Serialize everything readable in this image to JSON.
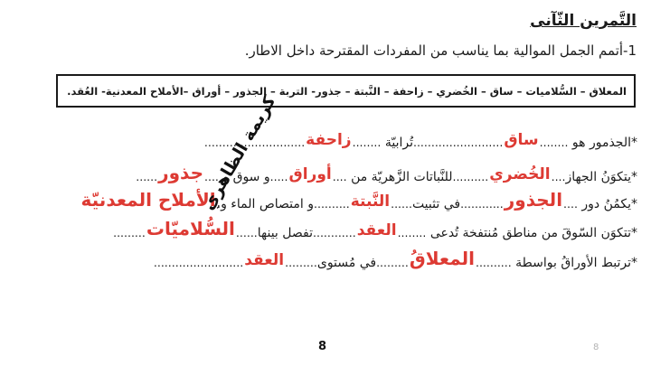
{
  "page": {
    "title": "التَّمرين الثّآنى",
    "instruction": "1-أتمم الجمل الموالية بما يناسب من المفردات المقترحة داخل الاطار.",
    "vocab_box": "المعلاق – السُّلاميات – ساق – الخُضري – زاحفة – النَّبتة – جذور- التربة – الجذور – أوراق –الأملاح المعدنية- العُقد.",
    "watermark": "كريمة الظاهري",
    "page_number": "8",
    "page_number_small": "8"
  },
  "colors": {
    "answer_red": "#dd3a33",
    "ink": "#1b1b1b"
  },
  "lines": [
    {
      "segments": [
        {
          "type": "print",
          "text": "*الجذمور هو "
        },
        {
          "type": "dots",
          "text": "........"
        },
        {
          "type": "answer",
          "text": "ساق"
        },
        {
          "type": "dots",
          "text": "........................."
        },
        {
          "type": "print",
          "text": "تُرابيّة "
        },
        {
          "type": "dots",
          "text": "........"
        },
        {
          "type": "answer",
          "text": "زاحفة"
        },
        {
          "type": "dots",
          "text": "............................"
        }
      ]
    },
    {
      "segments": [
        {
          "type": "print",
          "text": "*يتكوَنُ الجهاز"
        },
        {
          "type": "dots",
          "text": "...."
        },
        {
          "type": "answer",
          "text": "الخُضري"
        },
        {
          "type": "dots",
          "text": ".........."
        },
        {
          "type": "print",
          "text": "للنَّباتات الزَّهريّة من "
        },
        {
          "type": "dots",
          "text": "...."
        },
        {
          "type": "answer",
          "text": "أوراق"
        },
        {
          "type": "dots",
          "text": "....."
        },
        {
          "type": "print",
          "text": "و سوق و "
        },
        {
          "type": "dots",
          "text": "...."
        },
        {
          "type": "answer",
          "text": "جذور",
          "size": "big"
        },
        {
          "type": "dots",
          "text": "......"
        }
      ]
    },
    {
      "segments": [
        {
          "type": "print",
          "text": "*يكمُنُ دور "
        },
        {
          "type": "dots",
          "text": "...."
        },
        {
          "type": "answer",
          "text": "الجذور",
          "size": "big"
        },
        {
          "type": "dots",
          "text": "............"
        },
        {
          "type": "print",
          "text": "في تثبيت"
        },
        {
          "type": "dots",
          "text": "......"
        },
        {
          "type": "answer",
          "text": "النَّبتة"
        },
        {
          "type": "dots",
          "text": ".........."
        },
        {
          "type": "print",
          "text": "و امتصاص الماء و."
        },
        {
          "type": "answer",
          "text": "الأملاح المعدنيّة",
          "size": "big"
        }
      ]
    },
    {
      "segments": [
        {
          "type": "print",
          "text": "*تتكوَن السّوقَ من مناطق مُنتفخة تُدعى "
        },
        {
          "type": "dots",
          "text": "........"
        },
        {
          "type": "answer",
          "text": "العقد"
        },
        {
          "type": "dots",
          "text": "............"
        },
        {
          "type": "print",
          "text": "تفصل بينها"
        },
        {
          "type": "dots",
          "text": "......"
        },
        {
          "type": "answer",
          "text": "السُّلاميّات",
          "size": "big"
        },
        {
          "type": "dots",
          "text": "........."
        }
      ]
    },
    {
      "segments": [
        {
          "type": "print",
          "text": "*ترتبط الأوراقُ بواسطة "
        },
        {
          "type": "dots",
          "text": ".........."
        },
        {
          "type": "answer",
          "text": "المعلاقُ",
          "size": "big"
        },
        {
          "type": "dots",
          "text": "........."
        },
        {
          "type": "print",
          "text": "في مُستوى"
        },
        {
          "type": "dots",
          "text": "........."
        },
        {
          "type": "answer",
          "text": "العقد"
        },
        {
          "type": "dots",
          "text": "........................."
        }
      ]
    }
  ]
}
